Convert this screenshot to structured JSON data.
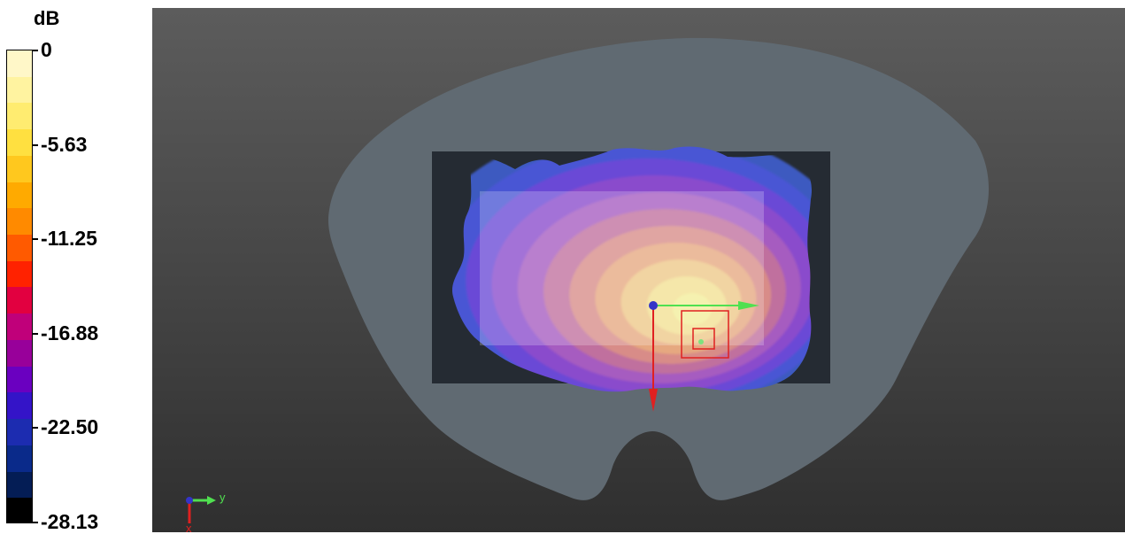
{
  "legend": {
    "unit": "dB",
    "ticks": [
      "0",
      "-5.63",
      "-11.25",
      "-16.88",
      "-22.50",
      "-28.13"
    ],
    "swatch_colors": [
      "#fff7c8",
      "#fff3a0",
      "#ffec70",
      "#ffe040",
      "#ffc81e",
      "#ffaa00",
      "#ff8a00",
      "#ff5a00",
      "#ff2200",
      "#e20040",
      "#c0007a",
      "#98009a",
      "#6a00c0",
      "#3414c8",
      "#1c2cb0",
      "#0a2a8a",
      "#041d55",
      "#000000"
    ]
  },
  "viewport": {
    "axis_triad": {
      "y_label": "y",
      "x_label": "x"
    }
  },
  "colors": {
    "phantom": "#606a72",
    "substrate": "#252b33",
    "field_outer": "#3c5ac0",
    "field_peak": "#f2ee9a",
    "x_axis": "#e02020",
    "y_axis": "#50e050",
    "origin": "#3434c8"
  }
}
